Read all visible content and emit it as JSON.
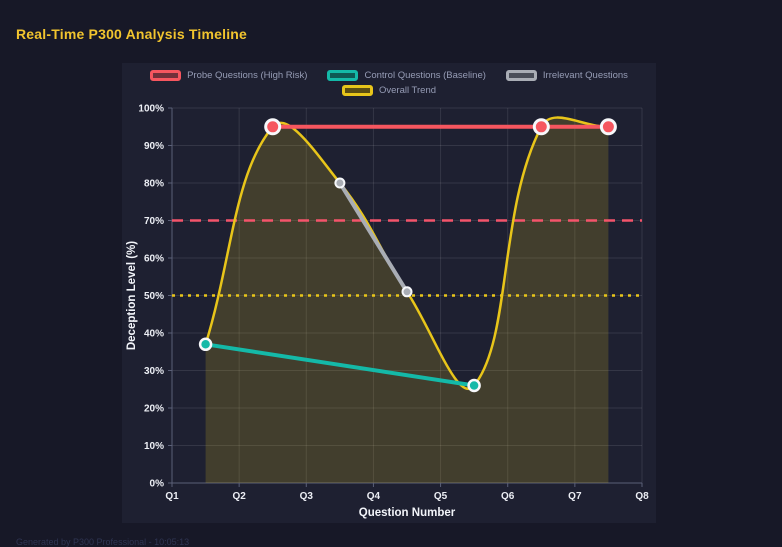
{
  "page": {
    "footer": "Generated by P300 Professional - 10:05:13"
  },
  "colors": {
    "page_bg": "#171827",
    "panel_bg": "#1e2031",
    "title_text": "#f1c42e",
    "legend_text": "#969cb5",
    "tick_text": "#edeff5",
    "grid": "rgba(255,255,255,0.10)",
    "spine": "#5b6078",
    "marker_ring": "#f7f8fb",
    "footer_text": "#2f3552"
  },
  "chart_data": {
    "type": "line",
    "title": "Real-Time P300 Analysis Timeline",
    "xlabel": "Question Number",
    "ylabel": "Deception Level (%)",
    "x_tick_labels": [
      "Q1",
      "Q2",
      "Q3",
      "Q4",
      "Q5",
      "Q6",
      "Q7",
      "Q8"
    ],
    "x_tick_values": [
      1,
      2,
      3,
      4,
      5,
      6,
      7,
      8
    ],
    "x_range": [
      1,
      8
    ],
    "y_tick_labels": [
      "0%",
      "10%",
      "20%",
      "30%",
      "40%",
      "50%",
      "60%",
      "70%",
      "80%",
      "90%",
      "100%"
    ],
    "y_tick_values": [
      0,
      10,
      20,
      30,
      40,
      50,
      60,
      70,
      80,
      90,
      100
    ],
    "y_range": [
      0,
      100
    ],
    "grid": true,
    "legend_position": "top",
    "legend_rows": [
      [
        0,
        1,
        2
      ],
      [
        3
      ]
    ],
    "series": [
      {
        "name": "Probe Questions (High Risk)",
        "color": "#f6565f",
        "swatch_fill": "#73303a",
        "shape": "line",
        "x": [
          2.5,
          6.5,
          7.5
        ],
        "y": [
          95,
          95,
          95
        ],
        "line_width": 4,
        "marker_radius": 7,
        "marker_stroke": 3
      },
      {
        "name": "Control Questions (Baseline)",
        "color": "#14b9a8",
        "swatch_fill": "#0e5a55",
        "shape": "line",
        "x": [
          1.5,
          5.5
        ],
        "y": [
          37,
          26
        ],
        "line_width": 4,
        "marker_radius": 5.5,
        "marker_stroke": 2.5
      },
      {
        "name": "Irrelevant Questions",
        "color": "#a9adb5",
        "swatch_fill": "#4a4e59",
        "shape": "line",
        "x": [
          3.5,
          4.5
        ],
        "y": [
          80,
          51
        ],
        "line_width": 4,
        "marker_radius": 4.5,
        "marker_stroke": 2
      },
      {
        "name": "Overall Trend",
        "color": "#e8c51a",
        "swatch_fill": "#5c4e12",
        "shape": "spline",
        "fill_opacity": 0.18,
        "x": [
          1.5,
          2.5,
          3.5,
          4.5,
          5.5,
          6.5,
          7.5
        ],
        "y": [
          37,
          95,
          80,
          51,
          26,
          95,
          95
        ],
        "line_width": 2.5,
        "marker_radius": 0,
        "marker_stroke": 0
      }
    ],
    "reference_lines": [
      {
        "value": 70,
        "color": "#f4546b",
        "dash": "11 7",
        "width": 2.5
      },
      {
        "value": 50,
        "color": "#e8c51a",
        "dash": "3 5",
        "width": 2.5
      }
    ]
  }
}
